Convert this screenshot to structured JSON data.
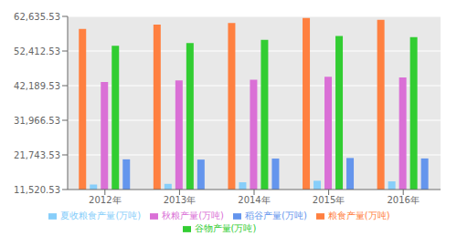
{
  "chart_data": {
    "type": "bar",
    "categories": [
      "2012年",
      "2013年",
      "2014年",
      "2015年",
      "2016年"
    ],
    "series": [
      {
        "name": "粮食产量(万吨)",
        "color": "#FF8040",
        "values": [
          58958,
          60194,
          60710,
          62144,
          61624
        ]
      },
      {
        "name": "夏收粮食产量(万吨)",
        "color": "#87CEFA",
        "values": [
          12995,
          13189,
          13659,
          14107,
          13920
        ]
      },
      {
        "name": "秋粮产量(万吨)",
        "color": "#DA70D6",
        "values": [
          43260,
          43726,
          43960,
          44822,
          44635
        ]
      },
      {
        "name": "谷物产量(万吨)",
        "color": "#32CD32",
        "values": [
          53953,
          54774,
          55727,
          56825,
          56517
        ]
      },
      {
        "name": "稻谷产量(万吨)",
        "color": "#6495ED",
        "values": [
          20429,
          20361,
          20651,
          20825,
          20693
        ]
      }
    ],
    "ylim": [
      11520.53,
      62635.53
    ],
    "yticks": [
      {
        "value": 11520.53,
        "label": "11,520.53"
      },
      {
        "value": 21743.53,
        "label": "21,743.53"
      },
      {
        "value": 31966.53,
        "label": "31,966.53"
      },
      {
        "value": 42189.53,
        "label": "42,189.53"
      },
      {
        "value": 52412.53,
        "label": "52,412.53"
      },
      {
        "value": 62635.53,
        "label": "62,635.53"
      }
    ],
    "grid": true,
    "legend": "bottom"
  }
}
